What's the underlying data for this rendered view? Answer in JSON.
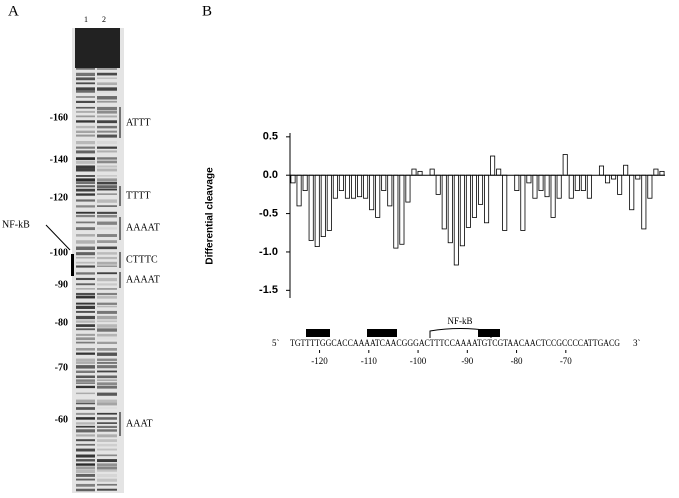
{
  "panel_labels": [
    "A",
    "B"
  ],
  "gel": {
    "lanes": [
      "1",
      "2"
    ],
    "markers": [
      -160,
      -140,
      -120,
      -100,
      -90,
      -80,
      -70,
      -60
    ],
    "motifs": [
      "ATTT",
      "TTTT",
      "AAAAT",
      "CTTTC",
      "AAAAT",
      "AAAT"
    ],
    "site_label": "NF-kB"
  },
  "chart_data": {
    "type": "bar",
    "ylabel": "Differential cleavage",
    "values": [
      -0.1,
      -0.4,
      -0.2,
      -0.85,
      -0.93,
      -0.8,
      -0.72,
      -0.3,
      -0.2,
      -0.3,
      -0.3,
      -0.28,
      -0.3,
      -0.45,
      -0.55,
      -0.2,
      -0.4,
      -0.95,
      -0.9,
      -0.35,
      0.08,
      0.05,
      0,
      0.08,
      -0.25,
      -0.7,
      -0.88,
      -1.17,
      -0.92,
      -0.68,
      -0.55,
      -0.38,
      -0.62,
      0.25,
      0.08,
      -0.72,
      0,
      -0.2,
      -0.72,
      -0.1,
      -0.3,
      -0.2,
      -0.28,
      -0.55,
      -0.3,
      0.27,
      -0.3,
      -0.2,
      -0.2,
      -0.3,
      0,
      0.12,
      -0.1,
      -0.05,
      -0.25,
      0.13,
      -0.45,
      -0.05,
      -0.7,
      -0.3,
      0.08,
      0.05
    ],
    "color": "#ffffff",
    "ylim": [
      -1.6,
      0.55
    ],
    "yticks": [
      0.5,
      {
        "value": 0,
        "label": "0.0"
      },
      -0.5,
      {
        "value": -1,
        "label": "-1.0"
      },
      -1.5
    ],
    "sequence": {
      "five_prime": "5`",
      "text": "TGTTTTGGCACCAAAATCAACGGGACTTTCCAAAATGTCGTAACAACTCCGCCCCATTGACG",
      "three_prime": "3`",
      "site_label": "NF-kB"
    },
    "xlim": [
      -126,
      -59
    ],
    "xticks": [
      -120,
      -110,
      -100,
      -90,
      -80,
      -70
    ]
  }
}
